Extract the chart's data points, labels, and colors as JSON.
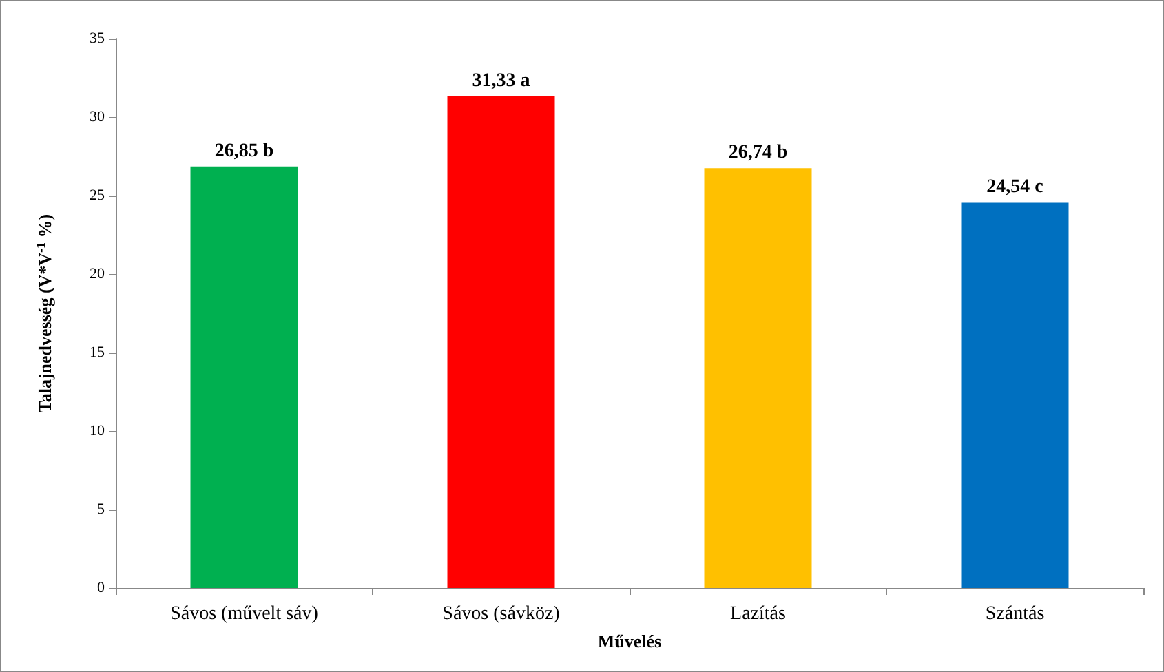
{
  "chart_data": {
    "type": "bar",
    "xlabel": "Művelés",
    "ylabel": "Talajnedvesség (V*V$^{-1}$ %)",
    "categories": [
      "Sávos (művelt sáv)",
      "Sávos (sávköz)",
      "Lazítás",
      "Szántás"
    ],
    "values": [
      26.85,
      31.33,
      26.74,
      24.54
    ],
    "colors": [
      "#00b050",
      "#ff0000",
      "#ffc000",
      "#0070c0"
    ],
    "value_labels": [
      "26,85 b",
      "31,33 a",
      "26,74 b",
      "24,54 c"
    ],
    "ylim": [
      0,
      35
    ],
    "yticks": [
      0,
      5,
      10,
      15,
      20,
      25,
      30,
      35
    ]
  }
}
